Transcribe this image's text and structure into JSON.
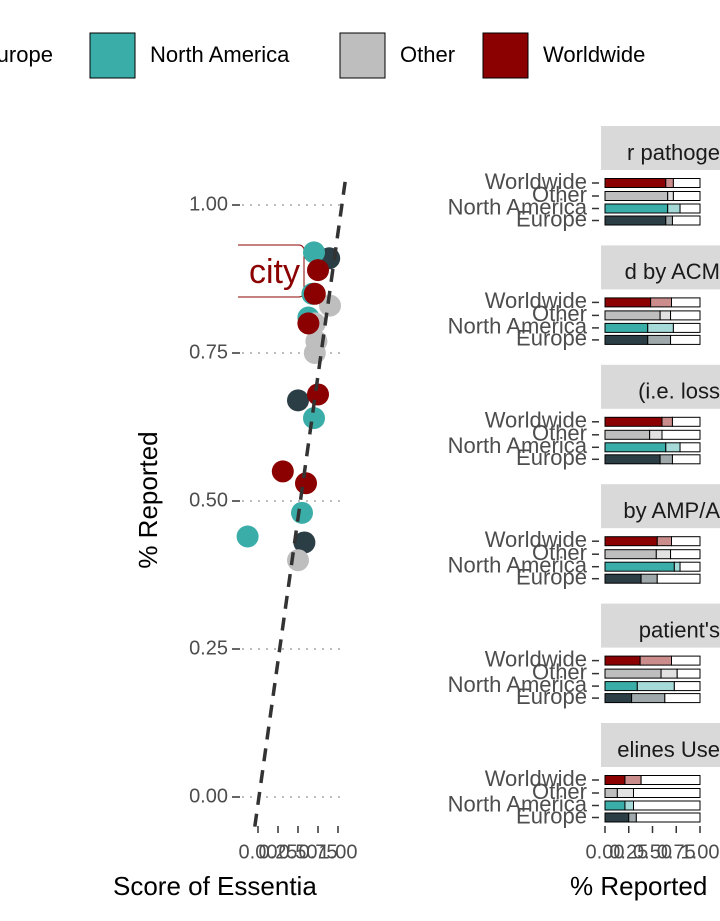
{
  "chart_data": [
    {
      "type": "scatter",
      "x_label": "Score of Essentia",
      "y_label": "% Reported",
      "annotation": "city",
      "xlim": [
        -0.25,
        1.1
      ],
      "ylim": [
        -0.05,
        1.05
      ],
      "xticks": [
        {
          "value": 0,
          "label": "0.00"
        },
        0.25,
        {
          "value": 0.5,
          "label": "0.50"
        },
        0.75,
        {
          "value": 1,
          "label": "1.00"
        }
      ],
      "yticks": [
        {
          "value": 0,
          "label": "0.00"
        },
        0.25,
        {
          "value": 0.5,
          "label": "0.50"
        },
        0.75,
        {
          "value": 1,
          "label": "1.00"
        }
      ],
      "grid": true,
      "trend_line": {
        "x": [
          -0.04,
          1.09
        ],
        "y": [
          -0.05,
          1.04
        ]
      },
      "series": [
        {
          "name": "Europe",
          "color": "#2b3d45",
          "x": [
            0.89,
            0.5,
            0.58
          ],
          "y": [
            0.91,
            0.67,
            0.43
          ]
        },
        {
          "name": "North America",
          "color": "#3aada8",
          "x": [
            -0.13,
            0.7,
            0.68,
            0.63,
            0.7,
            0.55
          ],
          "y": [
            0.44,
            0.92,
            0.85,
            0.81,
            0.64,
            0.48
          ]
        },
        {
          "name": "Other",
          "color": "#bebebe",
          "x": [
            0.9,
            0.71,
            0.73,
            0.71,
            0.5
          ],
          "y": [
            0.83,
            0.8,
            0.77,
            0.75,
            0.4
          ]
        },
        {
          "name": "Worldwide",
          "color": "#8b0000",
          "x": [
            0.75,
            0.71,
            0.63,
            0.75,
            0.31,
            0.6
          ],
          "y": [
            0.89,
            0.85,
            0.8,
            0.68,
            0.55,
            0.53
          ]
        }
      ]
    },
    {
      "type": "bar",
      "horizontal": true,
      "stacked": true,
      "x_label": "% Reported",
      "xlim": [
        0,
        1
      ],
      "xticks": [
        {
          "value": 0,
          "label": "0.00"
        },
        0.25,
        {
          "value": 0.5,
          "label": "0.50"
        },
        0.75,
        {
          "value": 1,
          "label": "1.00"
        }
      ],
      "categories": [
        "Worldwide",
        "Other",
        "North America",
        "Europe"
      ],
      "colors": [
        "#8b0000",
        "#bebebe",
        "#3aada8",
        "#2b3d45"
      ],
      "facets": [
        {
          "title": "r pathoge",
          "series": [
            {
              "values": [
                0.64,
                0.66,
                0.66,
                0.64
              ]
            },
            {
              "values": [
                0.08,
                0.06,
                0.13,
                0.07
              ]
            },
            {
              "values": [
                0.28,
                0.28,
                0.21,
                0.29
              ]
            }
          ]
        },
        {
          "title": "d by ACM",
          "series": [
            {
              "values": [
                0.48,
                0.58,
                0.45,
                0.45
              ]
            },
            {
              "values": [
                0.22,
                0.11,
                0.27,
                0.24
              ]
            },
            {
              "values": [
                0.3,
                0.31,
                0.28,
                0.31
              ]
            }
          ]
        },
        {
          "title": "(i.e. loss",
          "series": [
            {
              "values": [
                0.6,
                0.47,
                0.64,
                0.58
              ]
            },
            {
              "values": [
                0.11,
                0.13,
                0.15,
                0.13
              ]
            },
            {
              "values": [
                0.29,
                0.4,
                0.21,
                0.29
              ]
            }
          ]
        },
        {
          "title": "by AMP/A",
          "series": [
            {
              "values": [
                0.55,
                0.54,
                0.73,
                0.38
              ]
            },
            {
              "values": [
                0.15,
                0.15,
                0.06,
                0.17
              ]
            },
            {
              "values": [
                0.3,
                0.31,
                0.21,
                0.45
              ]
            }
          ]
        },
        {
          "title": "patient's",
          "series": [
            {
              "values": [
                0.37,
                0.59,
                0.34,
                0.28
              ]
            },
            {
              "values": [
                0.33,
                0.17,
                0.39,
                0.35
              ]
            },
            {
              "values": [
                0.3,
                0.24,
                0.27,
                0.37
              ]
            }
          ]
        },
        {
          "title": "elines Use",
          "series": [
            {
              "values": [
                0.21,
                0.13,
                0.21,
                0.25
              ]
            },
            {
              "values": [
                0.17,
                0.17,
                0.09,
                0.08
              ]
            },
            {
              "values": [
                0.62,
                0.7,
                0.7,
                0.67
              ]
            }
          ]
        }
      ]
    }
  ]
}
